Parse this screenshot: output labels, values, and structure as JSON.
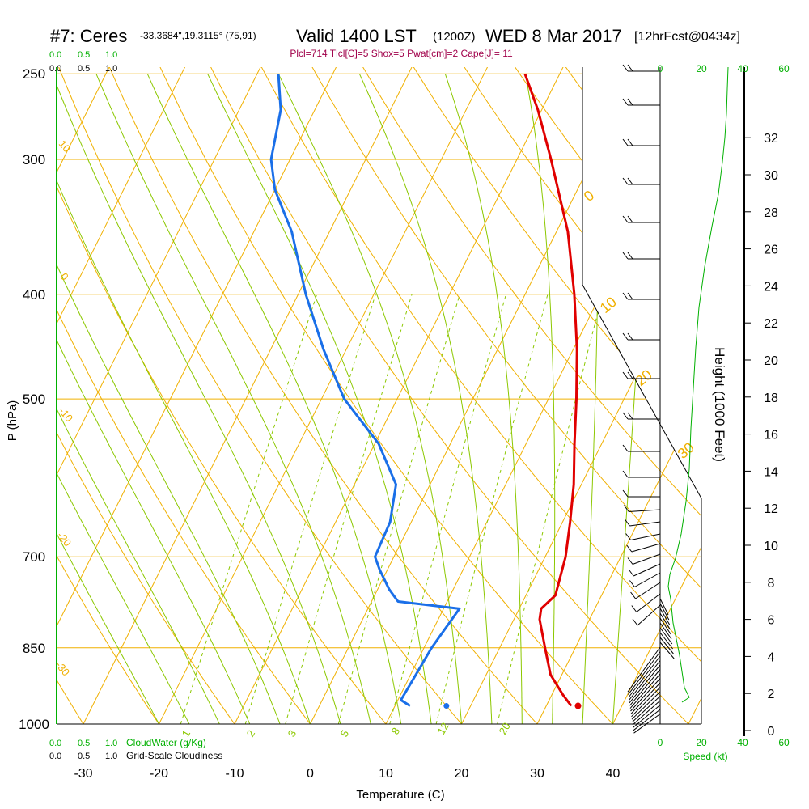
{
  "header": {
    "station": "#7: Ceres",
    "coords": "-33.3684\",19.3115° (75,91)",
    "valid": "Valid 1400 LST",
    "zulu": "(1200Z)",
    "date": "WED 8 Mar 2017",
    "forecast": "[12hrFcst@0434z]"
  },
  "indices": "Plcl=714 Tlcl[C]=5 Shox=5 Pwat[cm]=2 Cape[J]= 11",
  "colors": {
    "temperature": "#e00000",
    "dewpoint": "#1a6fe8",
    "isotherm": "#f0b000",
    "dry_adiabat": "#f0b000",
    "moist_adiabat": "#8cc800",
    "mixing_ratio": "#8cc800",
    "legend_green": "#00b000",
    "title_maroon": "#a0004a"
  },
  "legends": {
    "cloudwater_ticks": [
      "0.0",
      "0.5",
      "1.0"
    ],
    "cloudwater_label": "CloudWater (g/Kg)",
    "cloudiness_ticks": [
      "0.0",
      "0.5",
      "1.0"
    ],
    "cloudiness_label": "Grid-Scale Cloudiness"
  },
  "speed_axis": {
    "ticks": [
      "0",
      "20",
      "40",
      "60"
    ],
    "label": "Speed (kt)"
  },
  "chart_data": {
    "type": "line",
    "title": "Skew-T log-P sounding",
    "xlabel": "Temperature (C)",
    "ylabel": "P (hPa)",
    "y2label": "Height (1000 Feet)",
    "x_ticks": [
      -30,
      -20,
      -10,
      0,
      10,
      20,
      30,
      40
    ],
    "p_ticks": [
      250,
      300,
      400,
      500,
      700,
      850,
      1000
    ],
    "height_ticks": [
      0,
      2,
      4,
      6,
      8,
      10,
      12,
      14,
      16,
      18,
      20,
      22,
      24,
      26,
      28,
      30,
      32
    ],
    "xlim_at_1000hPa": [
      -33.5,
      44
    ],
    "ylim_hPa": [
      1000,
      250
    ],
    "mixing_ratio_labels": [
      "1",
      "2",
      "3",
      "5",
      "8",
      "12",
      "20"
    ],
    "isotherm_labels": [
      "10",
      "0",
      "-10",
      "-20",
      "-30"
    ],
    "moist_labels": [
      "0",
      "10",
      "20",
      "30"
    ],
    "series": [
      {
        "name": "Temperature",
        "color": "#e00000",
        "points": [
          [
            962,
            33.3
          ],
          [
            940,
            31.5
          ],
          [
            900,
            28.5
          ],
          [
            850,
            26.0
          ],
          [
            800,
            23.4
          ],
          [
            782,
            22.9
          ],
          [
            760,
            23.9
          ],
          [
            700,
            22.7
          ],
          [
            650,
            21.0
          ],
          [
            600,
            19.0
          ],
          [
            550,
            16.4
          ],
          [
            500,
            13.7
          ],
          [
            450,
            10.5
          ],
          [
            400,
            6.5
          ],
          [
            350,
            1.5
          ],
          [
            300,
            -5.5
          ],
          [
            270,
            -10.5
          ],
          [
            250,
            -14.6
          ]
        ]
      },
      {
        "name": "Dewpoint",
        "color": "#1a6fe8",
        "points": [
          [
            962,
            12.0
          ],
          [
            950,
            10.4
          ],
          [
            900,
            10.7
          ],
          [
            850,
            11.0
          ],
          [
            800,
            11.8
          ],
          [
            782,
            12.1
          ],
          [
            770,
            3.5
          ],
          [
            750,
            1.5
          ],
          [
            720,
            -1.0
          ],
          [
            700,
            -2.5
          ],
          [
            650,
            -2.8
          ],
          [
            600,
            -4.5
          ],
          [
            550,
            -9.5
          ],
          [
            500,
            -17.0
          ],
          [
            450,
            -23.0
          ],
          [
            400,
            -29.0
          ],
          [
            350,
            -35.0
          ],
          [
            320,
            -40.0
          ],
          [
            300,
            -42.5
          ],
          [
            270,
            -44.5
          ],
          [
            250,
            -47.2
          ]
        ]
      }
    ],
    "surface_temperature_marker": [
      962,
      34.2
    ],
    "surface_dewpoint_marker": [
      962,
      16.8
    ],
    "parcel_path": [
      [
        962,
        33.3
      ],
      [
        900,
        28.4
      ],
      [
        850,
        26.0
      ]
    ]
  }
}
